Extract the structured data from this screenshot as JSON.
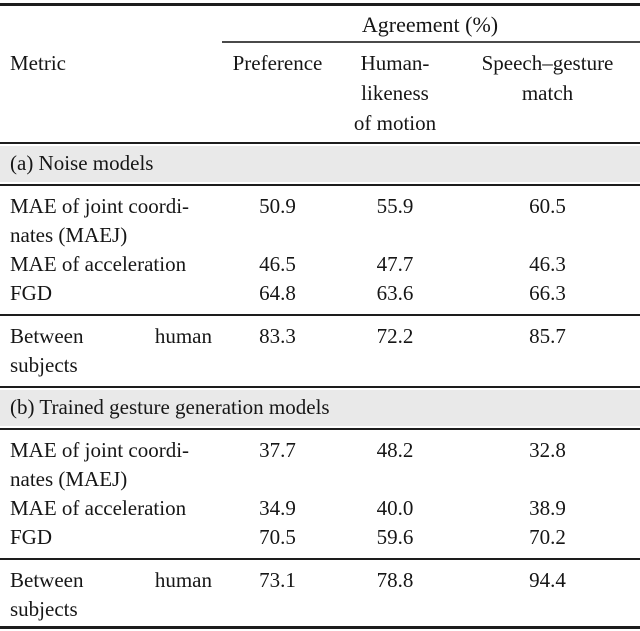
{
  "colors": {
    "page_bg": "#ffffff",
    "text": "#161616",
    "rule": "#1d1d1d",
    "cmidrule": "#4a4a4a",
    "band_bg": "#e9e9e9"
  },
  "header": {
    "group_title": "Agreement (%)",
    "metric_label": "Metric",
    "columns": [
      {
        "lines": [
          "Preference"
        ]
      },
      {
        "lines": [
          "Human-",
          "likeness",
          "of motion"
        ]
      },
      {
        "lines": [
          "Speech–gesture",
          "match"
        ]
      }
    ]
  },
  "sections": [
    {
      "band_label": "(a) Noise models",
      "rows": [
        {
          "metric_lines": [
            "MAE of joint coordi-",
            "nates (MAEJ)"
          ],
          "values": [
            "50.9",
            "55.9",
            "60.5"
          ]
        },
        {
          "metric_lines": [
            "MAE of acceleration"
          ],
          "values": [
            "46.5",
            "47.7",
            "46.3"
          ]
        },
        {
          "metric_lines": [
            "FGD"
          ],
          "values": [
            "64.8",
            "63.6",
            "66.3"
          ]
        }
      ],
      "human_row": {
        "metric_line1": "Between human",
        "metric_line2": "subjects",
        "values": [
          "83.3",
          "72.2",
          "85.7"
        ]
      }
    },
    {
      "band_label": "(b) Trained gesture generation models",
      "rows": [
        {
          "metric_lines": [
            "MAE of joint coordi-",
            "nates (MAEJ)"
          ],
          "values": [
            "37.7",
            "48.2",
            "32.8"
          ]
        },
        {
          "metric_lines": [
            "MAE of acceleration"
          ],
          "values": [
            "34.9",
            "40.0",
            "38.9"
          ]
        },
        {
          "metric_lines": [
            "FGD"
          ],
          "values": [
            "70.5",
            "59.6",
            "70.2"
          ]
        }
      ],
      "human_row": {
        "metric_line1": "Between human",
        "metric_line2": "subjects",
        "values": [
          "73.1",
          "78.8",
          "94.4"
        ]
      }
    }
  ]
}
